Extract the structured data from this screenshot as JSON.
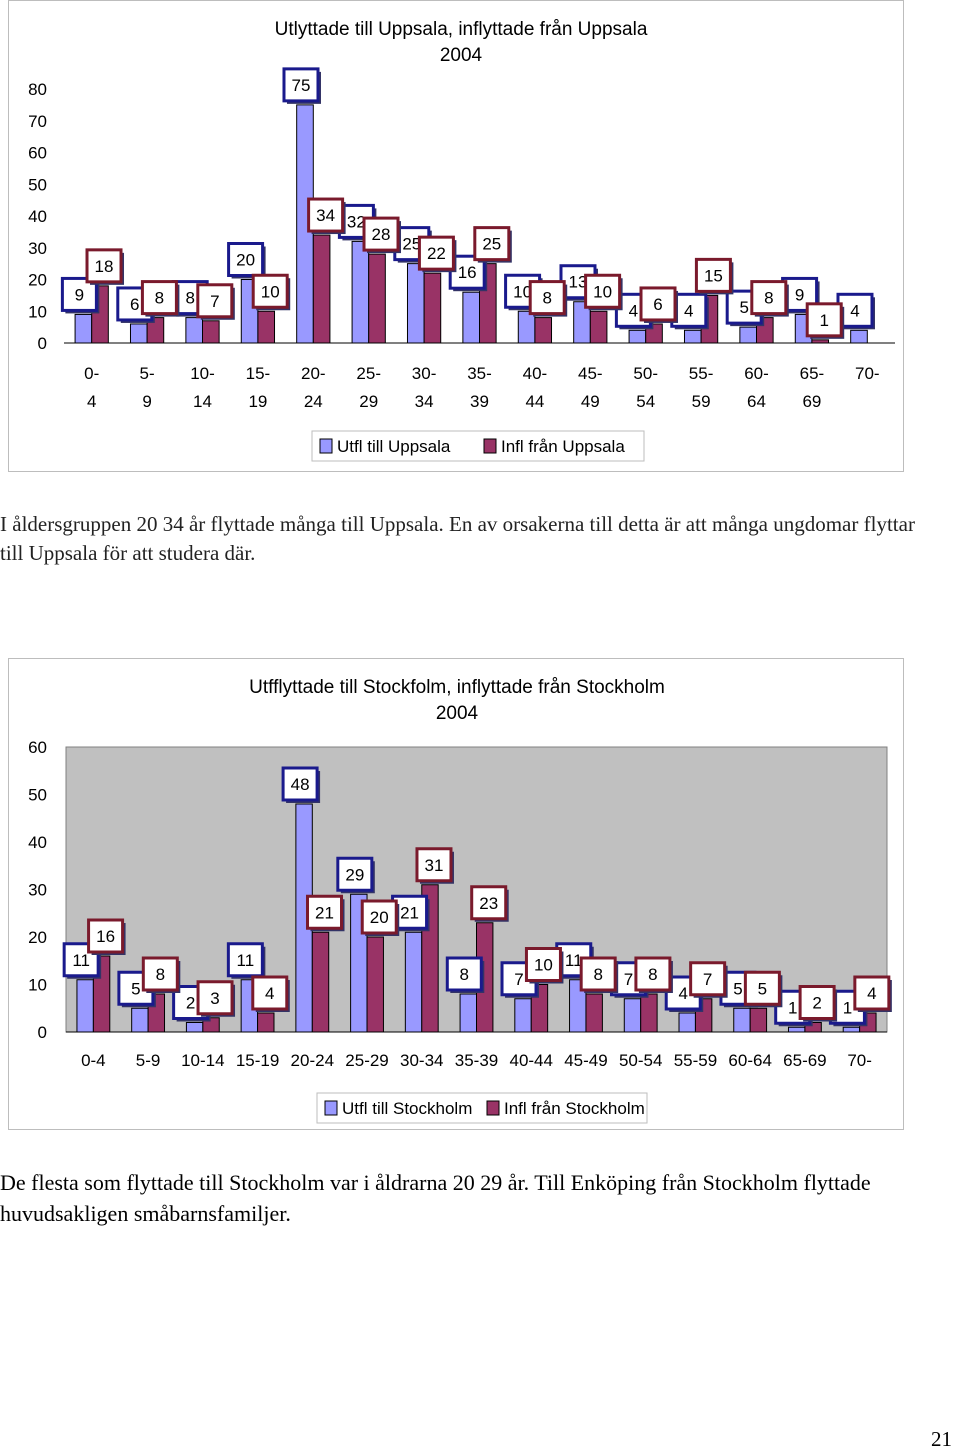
{
  "chart_data": [
    {
      "type": "bar",
      "title": "Utlyttade till Uppsala, inflyttade från Uppsala",
      "subtitle": "2004",
      "categories": [
        "0-4",
        "5-9",
        "10-14",
        "15-19",
        "20-24",
        "25-29",
        "30-34",
        "35-39",
        "40-44",
        "45-49",
        "50-54",
        "55-59",
        "60-64",
        "65-69",
        "70-"
      ],
      "series": [
        {
          "name": "Utfl till Uppsala",
          "color": "#9999ff",
          "values": [
            9,
            6,
            8,
            20,
            75,
            32,
            25,
            16,
            10,
            13,
            4,
            4,
            5,
            9,
            4
          ]
        },
        {
          "name": "Infl från Uppsala",
          "color": "#993366",
          "values": [
            18,
            8,
            7,
            10,
            34,
            28,
            22,
            25,
            8,
            10,
            6,
            15,
            8,
            1,
            0
          ]
        }
      ],
      "ylim": [
        0,
        80
      ],
      "yticks": [
        0,
        10,
        20,
        30,
        40,
        50,
        60,
        70,
        80
      ],
      "grid": false,
      "legend_position": "bottom",
      "xlabel": "",
      "ylabel": ""
    },
    {
      "type": "bar",
      "title": "Utfflyttade till Stockfolm, inflyttade från Stockholm",
      "subtitle": "2004",
      "categories": [
        "0-4",
        "5-9",
        "10-14",
        "15-19",
        "20-24",
        "25-29",
        "30-34",
        "35-39",
        "40-44",
        "45-49",
        "50-54",
        "55-59",
        "60-64",
        "65-69",
        "70-"
      ],
      "series": [
        {
          "name": "Utfl till Stockholm",
          "color": "#9999ff",
          "values": [
            11,
            5,
            2,
            11,
            48,
            29,
            21,
            8,
            7,
            11,
            7,
            4,
            5,
            1,
            1
          ]
        },
        {
          "name": "Infl från Stockholm",
          "color": "#993366",
          "values": [
            16,
            8,
            3,
            4,
            21,
            20,
            31,
            23,
            10,
            8,
            8,
            7,
            5,
            2,
            4
          ]
        }
      ],
      "ylim": [
        0,
        60
      ],
      "yticks": [
        0,
        10,
        20,
        30,
        40,
        50,
        60
      ],
      "grid": false,
      "legend_position": "bottom",
      "xlabel": "",
      "ylabel": "",
      "plot_background": "#c0c0c0"
    }
  ],
  "text": {
    "para1": "I åldersgruppen 20 34 år flyttade många till Uppsala. En av orsakerna till detta är att många ungdomar flyttar till Uppsala för att studera där.",
    "para2": "De flesta som flyttade till Stockholm var i åldrarna 20 29 år. Till Enköping från Stockholm flyttade huvudsakligen småbarnsfamiljer.",
    "page_number": "21"
  }
}
